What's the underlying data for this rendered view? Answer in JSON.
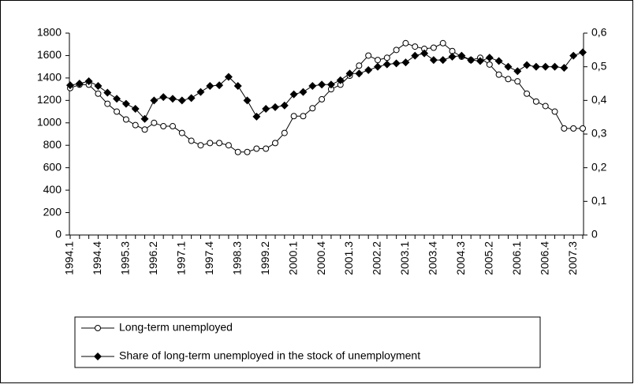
{
  "chart_data": {
    "type": "line",
    "categories": [
      "1994.1",
      null,
      null,
      "1994.4",
      null,
      null,
      "1995.3",
      null,
      null,
      "1996.2",
      null,
      null,
      "1997.1",
      null,
      null,
      "1997.4",
      null,
      null,
      "1998.3",
      null,
      null,
      "1999.2",
      null,
      null,
      "2000.1",
      null,
      null,
      "2000.4",
      null,
      null,
      "2001.3",
      null,
      null,
      "2002.2",
      null,
      null,
      "2003.1",
      null,
      null,
      "2003.4",
      null,
      null,
      "2004.3",
      null,
      null,
      "2005.2",
      null,
      null,
      "2006.1",
      null,
      null,
      "2006.4",
      null,
      null,
      "2007.3",
      null
    ],
    "series": [
      {
        "name": "Long-term unemployed",
        "color": "#000000",
        "marker": "circle",
        "values": [
          1310,
          1340,
          1340,
          1260,
          1170,
          1100,
          1030,
          980,
          940,
          1000,
          970,
          970,
          910,
          840,
          800,
          820,
          820,
          800,
          740,
          740,
          770,
          770,
          820,
          910,
          1060,
          1060,
          1130,
          1210,
          1300,
          1340,
          1420,
          1510,
          1600,
          1560,
          1580,
          1650,
          1710,
          1680,
          1660,
          1670,
          1710,
          1640,
          1590,
          1560,
          1580,
          1520,
          1430,
          1390,
          1370,
          1260,
          1190,
          1150,
          1100,
          950,
          950,
          950
        ]
      },
      {
        "name": "Share of long-term unemployed in the stock of unemployment",
        "color": "#000000",
        "marker": "diamond",
        "axis": "y2",
        "values": [
          0.445,
          0.45,
          0.457,
          0.443,
          0.423,
          0.405,
          0.39,
          0.375,
          0.345,
          0.4,
          0.41,
          0.405,
          0.4,
          0.407,
          0.425,
          0.443,
          0.445,
          0.47,
          0.443,
          0.4,
          0.352,
          0.375,
          0.38,
          0.385,
          0.418,
          0.425,
          0.443,
          0.447,
          0.447,
          0.46,
          0.48,
          0.48,
          0.49,
          0.5,
          0.507,
          0.51,
          0.513,
          0.533,
          0.54,
          0.52,
          0.52,
          0.53,
          0.533,
          0.52,
          0.517,
          0.527,
          0.517,
          0.5,
          0.487,
          0.505,
          0.5,
          0.5,
          0.5,
          0.497,
          0.533,
          0.543
        ]
      }
    ],
    "ylim": [
      0,
      1800
    ],
    "yticks": [
      0,
      200,
      400,
      600,
      800,
      1000,
      1200,
      1400,
      1600,
      1800
    ],
    "y2lim": [
      0,
      0.6
    ],
    "y2ticks": [
      0,
      {
        "value": 0.1,
        "label": "0,1"
      },
      {
        "value": 0.2,
        "label": "0,2"
      },
      {
        "value": 0.3,
        "label": "0,3"
      },
      {
        "value": 0.4,
        "label": "0,4"
      },
      {
        "value": 0.5,
        "label": "0,5"
      },
      {
        "value": 0.6,
        "label": "0,6"
      }
    ],
    "grid": false,
    "legend": "bottom-left"
  }
}
